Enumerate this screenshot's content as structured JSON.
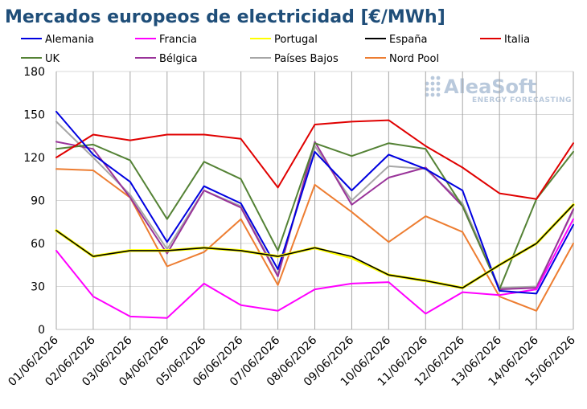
{
  "chart_data": {
    "type": "line",
    "title": "Mercados europeos de electricidad [€/MWh]",
    "xlabel": "",
    "ylabel": "",
    "ylim": [
      0,
      180
    ],
    "yticks": [
      0,
      30,
      60,
      90,
      120,
      150,
      180
    ],
    "grid": "vertical and horizontal",
    "legend_position": "top",
    "categories": [
      "01/06/2026",
      "02/06/2026",
      "03/06/2026",
      "04/06/2026",
      "05/06/2026",
      "06/06/2026",
      "07/06/2026",
      "08/06/2026",
      "09/06/2026",
      "10/06/2026",
      "11/06/2026",
      "12/06/2026",
      "13/06/2026",
      "14/06/2026",
      "15/06/2026"
    ],
    "series": [
      {
        "name": "Alemania",
        "color": "#0000e0",
        "values": [
          152,
          122,
          103,
          61,
          100,
          88,
          42,
          124,
          97,
          122,
          112,
          97,
          27,
          25,
          73
        ]
      },
      {
        "name": "Francia",
        "color": "#ff00ff",
        "values": [
          55,
          23,
          9,
          8,
          32,
          17,
          13,
          28,
          32,
          33,
          11,
          26,
          24,
          28,
          77
        ]
      },
      {
        "name": "Portugal",
        "color": "#ffff00",
        "values": [
          69,
          51,
          55,
          55,
          57,
          55,
          51,
          57,
          50,
          38,
          34,
          29,
          45,
          60,
          87
        ]
      },
      {
        "name": "España",
        "color": "#000000",
        "values": [
          69,
          51,
          55,
          55,
          57,
          55,
          51,
          57,
          51,
          38,
          34,
          29,
          45,
          60,
          87
        ]
      },
      {
        "name": "Italia",
        "color": "#e00000",
        "values": [
          120,
          136,
          132,
          136,
          136,
          133,
          99,
          143,
          145,
          146,
          128,
          113,
          95,
          91,
          130
        ]
      },
      {
        "name": "UK",
        "color": "#548235",
        "values": [
          126,
          129,
          118,
          77,
          117,
          105,
          55,
          130,
          121,
          130,
          126,
          86,
          28,
          91,
          124
        ]
      },
      {
        "name": "Bélgica",
        "color": "#993399",
        "values": [
          131,
          126,
          92,
          53,
          97,
          85,
          37,
          131,
          87,
          106,
          113,
          86,
          28,
          29,
          84
        ]
      },
      {
        "name": "Países Bajos",
        "color": "#a6a6a6",
        "values": [
          145,
          120,
          94,
          56,
          97,
          86,
          38,
          128,
          90,
          114,
          112,
          88,
          29,
          30,
          83
        ]
      },
      {
        "name": "Nord Pool",
        "color": "#ed7d31",
        "values": [
          112,
          111,
          92,
          44,
          54,
          77,
          31,
          101,
          82,
          61,
          79,
          68,
          23,
          13,
          60
        ]
      }
    ]
  },
  "watermark": {
    "main": "AleaSoft",
    "sub": "ENERGY FORECASTING"
  }
}
